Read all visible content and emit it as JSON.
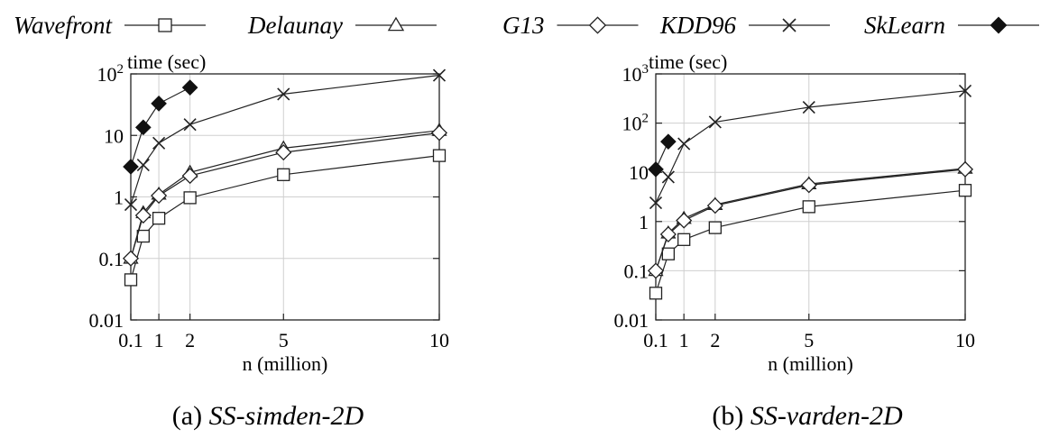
{
  "legend": {
    "items": [
      {
        "name": "Wavefront",
        "marker": "square"
      },
      {
        "name": "Delaunay",
        "marker": "triangle"
      },
      {
        "name": "G13",
        "marker": "diamond"
      },
      {
        "name": "KDD96",
        "marker": "cross"
      },
      {
        "name": "SkLearn",
        "marker": "filled-diamond"
      }
    ]
  },
  "chart_data": [
    {
      "type": "line",
      "caption_prefix": "(a) ",
      "caption_italic": "SS-simden-2D",
      "ylabel": "time (sec)",
      "xlabel": "n (million)",
      "yscale": "log",
      "ylim": [
        0.01,
        100
      ],
      "xlim": [
        0.1,
        10
      ],
      "x_ticks": [
        "0.1",
        "1",
        "2",
        "5",
        "10"
      ],
      "x_tick_values": [
        0.1,
        1,
        2,
        5,
        10
      ],
      "y_ticks": [
        "0.01",
        "0.1",
        "1",
        "10",
        "10^2"
      ],
      "y_tick_values": [
        0.01,
        0.1,
        1,
        10,
        100
      ],
      "grid": true,
      "series": [
        {
          "name": "Wavefront",
          "marker": "square",
          "x": [
            0.1,
            0.5,
            1,
            2,
            5,
            10
          ],
          "y": [
            0.045,
            0.23,
            0.45,
            0.97,
            2.3,
            4.7
          ]
        },
        {
          "name": "Delaunay",
          "marker": "triangle",
          "x": [
            0.1,
            0.5,
            1,
            2,
            5,
            10
          ],
          "y": [
            0.1,
            0.55,
            1.1,
            2.5,
            6.2,
            12.0
          ]
        },
        {
          "name": "G13",
          "marker": "diamond",
          "x": [
            0.1,
            0.5,
            1,
            2,
            5,
            10
          ],
          "y": [
            0.1,
            0.5,
            1.05,
            2.2,
            5.3,
            11.0
          ]
        },
        {
          "name": "KDD96",
          "marker": "cross",
          "x": [
            0.1,
            0.5,
            1,
            2,
            5,
            10
          ],
          "y": [
            0.75,
            3.3,
            7.5,
            15,
            47,
            95
          ]
        },
        {
          "name": "SkLearn",
          "marker": "filled-diamond",
          "x": [
            0.1,
            0.5,
            1,
            2
          ],
          "y": [
            3.1,
            13.5,
            33,
            60
          ]
        }
      ]
    },
    {
      "type": "line",
      "caption_prefix": "(b) ",
      "caption_italic": "SS-varden-2D",
      "ylabel": "time (sec)",
      "xlabel": "n (million)",
      "yscale": "log",
      "ylim": [
        0.01,
        1000
      ],
      "xlim": [
        0.1,
        10
      ],
      "x_ticks": [
        "0.1",
        "1",
        "2",
        "5",
        "10"
      ],
      "x_tick_values": [
        0.1,
        1,
        2,
        5,
        10
      ],
      "y_ticks": [
        "0.01",
        "0.1",
        "1",
        "10",
        "10^2",
        "10^3"
      ],
      "y_tick_values": [
        0.01,
        0.1,
        1,
        10,
        100,
        1000
      ],
      "grid": true,
      "series": [
        {
          "name": "Wavefront",
          "marker": "square",
          "x": [
            0.1,
            0.5,
            1,
            2,
            5,
            10
          ],
          "y": [
            0.035,
            0.22,
            0.43,
            0.75,
            2.0,
            4.3
          ]
        },
        {
          "name": "Delaunay",
          "marker": "triangle",
          "x": [
            0.1,
            0.5,
            1,
            2,
            5,
            10
          ],
          "y": [
            0.1,
            0.58,
            1.15,
            2.2,
            5.8,
            12.0
          ]
        },
        {
          "name": "G13",
          "marker": "diamond",
          "x": [
            0.1,
            0.5,
            1,
            2,
            5,
            10
          ],
          "y": [
            0.1,
            0.55,
            1.05,
            2.1,
            5.5,
            11.5
          ]
        },
        {
          "name": "KDD96",
          "marker": "cross",
          "x": [
            0.1,
            0.5,
            1,
            2,
            5,
            10
          ],
          "y": [
            2.4,
            8.0,
            38,
            105,
            210,
            450
          ]
        },
        {
          "name": "SkLearn",
          "marker": "filled-diamond",
          "x": [
            0.1,
            0.5
          ],
          "y": [
            11.5,
            42
          ]
        }
      ]
    }
  ]
}
